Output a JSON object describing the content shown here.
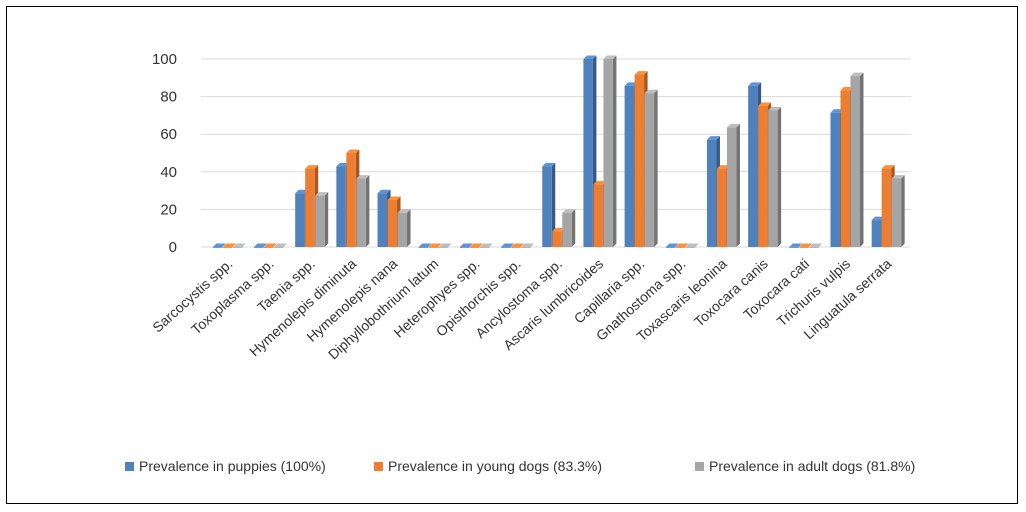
{
  "chart_data": {
    "type": "bar",
    "title": "",
    "xlabel": "",
    "ylabel": "",
    "ylim": [
      0,
      110
    ],
    "yticks": [
      0,
      20,
      40,
      60,
      80,
      100
    ],
    "grid": true,
    "legend_position": "bottom",
    "categories": [
      "Sarcocystis spp.",
      "Toxoplasma spp.",
      "Taenia spp.",
      "Hymenolepis diminuta",
      "Hymenolepis nana",
      "Diphyllobothrium latum",
      "Heterophyes spp.",
      "Opisthorchis spp.",
      "Ancylostoma spp.",
      "Ascaris lumbricoides",
      "Capillaria spp.",
      "Gnathostoma spp.",
      "Toxascaris leonina",
      "Toxocara canis",
      "Toxocara cati",
      "Trichuris vulpis",
      "Linguatula serrata"
    ],
    "series": [
      {
        "name": "Prevalence in puppies (100%)",
        "color": "#4f81bd",
        "values": [
          0,
          0,
          28.6,
          42.9,
          28.6,
          0,
          0,
          0,
          42.9,
          100,
          85.7,
          0,
          57.1,
          85.7,
          0,
          71.4,
          14.3
        ]
      },
      {
        "name": "Prevalence in young dogs (83.3%)",
        "color": "#ed7d31",
        "values": [
          0,
          0,
          41.7,
          50,
          25,
          0,
          0,
          0,
          8.3,
          33.3,
          91.7,
          0,
          41.7,
          75,
          0,
          83.3,
          41.7
        ]
      },
      {
        "name": "Prevalence in adult dogs (81.8%)",
        "color": "#a5a5a5",
        "values": [
          0,
          0,
          27.3,
          36.4,
          18.2,
          0,
          0,
          0,
          18.2,
          100,
          81.8,
          0,
          63.6,
          72.7,
          0,
          90.9,
          36.4
        ]
      }
    ]
  }
}
